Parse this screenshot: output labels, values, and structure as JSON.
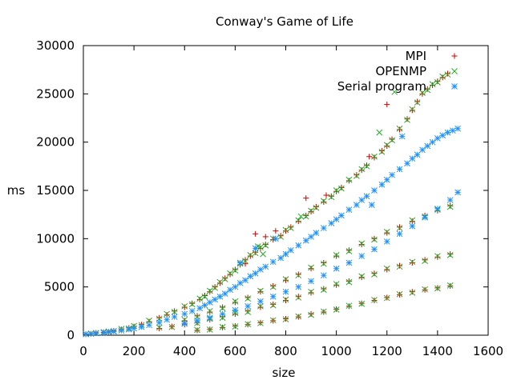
{
  "chart_data": {
    "type": "scatter",
    "title": "Conway's Game of Life",
    "xlabel": "size",
    "ylabel": "ms",
    "xlim": [
      0,
      1600
    ],
    "ylim": [
      0,
      30000
    ],
    "x_ticks": [
      "0",
      "200",
      "400",
      "600",
      "800",
      "1000",
      "1200",
      "1400",
      "1600"
    ],
    "y_ticks": [
      "0",
      "5000",
      "10000",
      "15000",
      "20000",
      "25000",
      "30000"
    ],
    "grid": false,
    "legend_position": "top-right",
    "series": [
      {
        "name": "MPI",
        "marker": "+",
        "color": "#cc0000",
        "x": [
          10,
          30,
          50,
          80,
          100,
          120,
          150,
          180,
          200,
          230,
          260,
          300,
          330,
          360,
          400,
          430,
          460,
          480,
          500,
          520,
          540,
          560,
          580,
          600,
          620,
          640,
          660,
          680,
          700,
          720,
          750,
          780,
          800,
          820,
          850,
          880,
          900,
          920,
          950,
          980,
          1000,
          1020,
          1050,
          1080,
          1100,
          1120,
          1150,
          1180,
          1200,
          1220,
          1250,
          1280,
          1300,
          1320,
          1340,
          1360,
          1380,
          1400,
          1420,
          1440,
          400,
          450,
          500,
          550,
          600,
          650,
          700,
          750,
          800,
          850,
          900,
          950,
          1000,
          1050,
          1100,
          1150,
          1200,
          1250,
          1300,
          1350,
          1400,
          1450,
          300,
          350,
          400,
          450,
          500,
          550,
          600,
          650,
          700,
          750,
          800,
          850,
          900,
          950,
          1000,
          1050,
          1100,
          1150,
          1200,
          1250,
          1300,
          1350,
          1400,
          1450,
          450,
          500,
          550,
          600,
          650,
          700,
          750,
          800,
          850,
          900,
          950,
          1000,
          1050,
          1100,
          1150,
          1200,
          1250,
          1300,
          1350,
          1400,
          1450,
          640,
          680,
          720,
          760,
          880,
          960,
          1130,
          1200
        ],
        "y": [
          100,
          150,
          250,
          300,
          350,
          450,
          600,
          750,
          900,
          1100,
          1400,
          1800,
          2100,
          2500,
          2900,
          3300,
          3700,
          4100,
          4500,
          5000,
          5400,
          5900,
          6300,
          6800,
          7300,
          7800,
          8200,
          8600,
          9000,
          9400,
          9900,
          10300,
          10800,
          11200,
          11800,
          12400,
          12800,
          13300,
          13800,
          14400,
          14900,
          15300,
          16000,
          16600,
          17100,
          17600,
          18400,
          19100,
          19600,
          20300,
          21300,
          22400,
          23300,
          24200,
          25000,
          25500,
          25900,
          26300,
          26700,
          27100,
          1500,
          2000,
          2400,
          2900,
          3400,
          3900,
          4500,
          5100,
          5700,
          6300,
          6900,
          7500,
          8200,
          8800,
          9400,
          10000,
          10600,
          11200,
          11800,
          12400,
          12900,
          13400,
          700,
          900,
          1100,
          1300,
          1600,
          1900,
          2200,
          2500,
          2900,
          3200,
          3600,
          4000,
          4400,
          4800,
          5200,
          5600,
          6000,
          6400,
          6800,
          7200,
          7500,
          7800,
          8100,
          8400,
          500,
          600,
          800,
          950,
          1100,
          1300,
          1500,
          1700,
          1900,
          2200,
          2400,
          2700,
          3000,
          3300,
          3600,
          3900,
          4200,
          4500,
          4700,
          4900,
          5100,
          7400,
          10500,
          10200,
          10800,
          14200,
          14500,
          18500,
          23900
        ]
      },
      {
        "name": "OPENMP",
        "marker": "x",
        "color": "#22aa22",
        "x": [
          10,
          30,
          50,
          80,
          100,
          120,
          150,
          180,
          200,
          230,
          260,
          300,
          330,
          360,
          400,
          430,
          460,
          480,
          500,
          520,
          540,
          560,
          580,
          600,
          620,
          640,
          660,
          680,
          700,
          720,
          750,
          780,
          800,
          820,
          850,
          880,
          900,
          920,
          950,
          980,
          1000,
          1020,
          1050,
          1080,
          1100,
          1120,
          1150,
          1180,
          1200,
          1220,
          1250,
          1280,
          1300,
          1320,
          1340,
          1360,
          1380,
          1400,
          1420,
          1440,
          400,
          450,
          500,
          550,
          600,
          650,
          700,
          750,
          800,
          850,
          900,
          950,
          1000,
          1050,
          1100,
          1150,
          1200,
          1250,
          1300,
          1350,
          1400,
          1450,
          300,
          350,
          400,
          450,
          500,
          550,
          600,
          650,
          700,
          750,
          800,
          850,
          900,
          950,
          1000,
          1050,
          1100,
          1150,
          1200,
          1250,
          1300,
          1350,
          1400,
          1450,
          450,
          500,
          550,
          600,
          650,
          700,
          750,
          800,
          850,
          900,
          950,
          1000,
          1050,
          1100,
          1150,
          1200,
          1250,
          1300,
          1350,
          1400,
          1450,
          690,
          710,
          860,
          1170,
          1230
        ],
        "y": [
          120,
          180,
          230,
          320,
          380,
          430,
          650,
          700,
          950,
          1050,
          1500,
          1700,
          2200,
          2400,
          3000,
          3200,
          3800,
          4000,
          4600,
          4900,
          5500,
          5800,
          6400,
          6700,
          7400,
          7700,
          8300,
          8500,
          9100,
          9300,
          10000,
          10200,
          10900,
          11100,
          11900,
          12300,
          12900,
          13200,
          13900,
          14300,
          15000,
          15200,
          16100,
          16500,
          17200,
          17500,
          18500,
          19000,
          19700,
          20200,
          21400,
          22300,
          23400,
          24100,
          25100,
          25400,
          26000,
          26200,
          26800,
          27000,
          1600,
          1900,
          2500,
          2800,
          3500,
          3800,
          4600,
          5000,
          5800,
          6200,
          7000,
          7400,
          8300,
          8700,
          9500,
          9900,
          10700,
          11100,
          11900,
          12300,
          13000,
          13300,
          800,
          850,
          1200,
          1250,
          1700,
          1800,
          2300,
          2400,
          3000,
          3100,
          3700,
          3900,
          4500,
          4700,
          5300,
          5500,
          6100,
          6300,
          6900,
          7100,
          7600,
          7700,
          8200,
          8300,
          550,
          580,
          850,
          900,
          1150,
          1250,
          1550,
          1650,
          1950,
          2100,
          2450,
          2650,
          3050,
          3250,
          3650,
          3850,
          4250,
          4400,
          4750,
          4850,
          5150,
          9200,
          8400,
          12300,
          21000,
          25200
        ]
      },
      {
        "name": "Serial program",
        "marker": "*",
        "color": "#1e90ff",
        "x": [
          10,
          30,
          50,
          80,
          100,
          120,
          150,
          180,
          200,
          230,
          260,
          300,
          330,
          360,
          400,
          430,
          460,
          480,
          500,
          520,
          540,
          560,
          580,
          600,
          620,
          640,
          660,
          680,
          700,
          720,
          750,
          780,
          800,
          820,
          850,
          880,
          900,
          920,
          950,
          980,
          1000,
          1020,
          1050,
          1080,
          1100,
          1120,
          1150,
          1180,
          1200,
          1220,
          1250,
          1280,
          1300,
          1320,
          1340,
          1360,
          1380,
          1400,
          1420,
          1440,
          1460,
          1480,
          400,
          450,
          500,
          550,
          600,
          650,
          700,
          750,
          800,
          850,
          900,
          950,
          1000,
          1050,
          1100,
          1150,
          1200,
          1250,
          1300,
          1350,
          1400,
          1450,
          1480,
          620,
          680,
          760,
          1140,
          1260
        ],
        "y": [
          100,
          140,
          200,
          260,
          320,
          380,
          480,
          600,
          700,
          850,
          1050,
          1300,
          1600,
          1900,
          2200,
          2500,
          2800,
          3100,
          3400,
          3700,
          4000,
          4300,
          4700,
          5000,
          5400,
          5700,
          6100,
          6400,
          6800,
          7100,
          7600,
          8000,
          8400,
          8800,
          9300,
          9800,
          10200,
          10600,
          11100,
          11600,
          12000,
          12400,
          13000,
          13500,
          14000,
          14400,
          15000,
          15600,
          16100,
          16600,
          17200,
          17800,
          18300,
          18700,
          19200,
          19600,
          20000,
          20400,
          20700,
          21000,
          21200,
          21400,
          1200,
          1500,
          1800,
          2200,
          2600,
          3000,
          3500,
          4000,
          4500,
          5000,
          5600,
          6200,
          6900,
          7500,
          8200,
          8900,
          9700,
          10500,
          11300,
          12200,
          13100,
          14000,
          14800,
          7500,
          9000,
          10000,
          13500,
          20600
        ]
      }
    ]
  }
}
